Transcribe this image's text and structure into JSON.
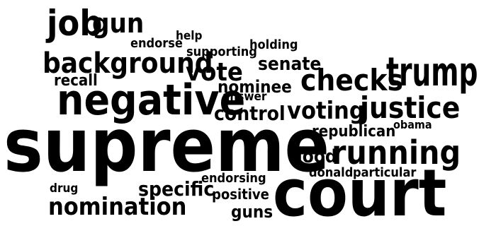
{
  "words": {
    "job": "job",
    "gun": "gun",
    "endorse": "endorse",
    "help": "help",
    "holding": "holding",
    "supporting": "supporting",
    "background": "background",
    "senate": "senate",
    "trump": "trump",
    "vote": "vote",
    "recall": "recall",
    "checks": "checks",
    "nominee": "nominee",
    "negative": "negative",
    "answer": "answer",
    "justice": "justice",
    "control": "control",
    "voting": "voting",
    "obama": "obama",
    "republican": "republican",
    "supreme": "supreme",
    "good": "good",
    "running": "running",
    "donald": "donald",
    "particular": "particular",
    "endorsing": "endorsing",
    "specific": "specific",
    "drug": "drug",
    "positive": "positive",
    "nomination": "nomination",
    "guns": "guns",
    "court": "court"
  },
  "colors": {
    "text": "#000000",
    "background": "#ffffff"
  }
}
